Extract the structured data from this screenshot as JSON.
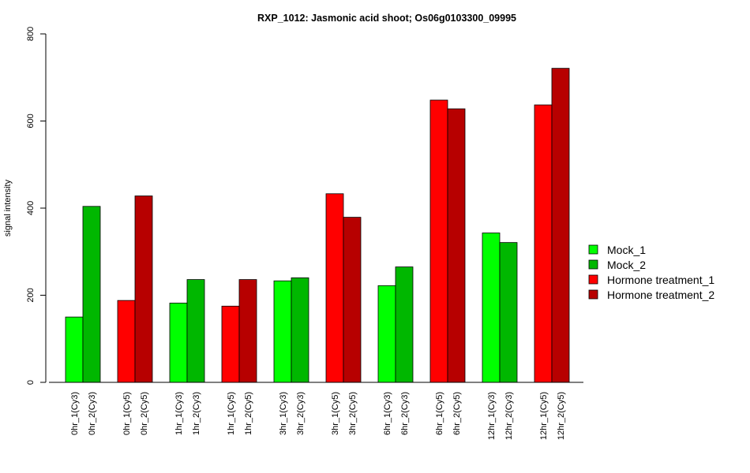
{
  "chart_data": {
    "type": "bar",
    "title": "RXP_1012: Jasmonic acid shoot; Os06g0103300_09995",
    "xlabel": "",
    "ylabel": "signal intensity",
    "ylim": [
      0,
      800
    ],
    "yticks": [
      0,
      200,
      400,
      600,
      800
    ],
    "grid": false,
    "legend_position": "right",
    "categories": [
      "0hr_1(Cy3)",
      "0hr_2(Cy3)",
      "0hr_1(Cy5)",
      "0hr_2(Cy5)",
      "1hr_1(Cy3)",
      "1hr_2(Cy3)",
      "1hr_1(Cy5)",
      "1hr_2(Cy5)",
      "3hr_1(Cy3)",
      "3hr_2(Cy3)",
      "3hr_1(Cy5)",
      "3hr_2(Cy5)",
      "6hr_1(Cy3)",
      "6hr_2(Cy3)",
      "6hr_1(Cy5)",
      "6hr_2(Cy5)",
      "12hr_1(Cy3)",
      "12hr_2(Cy3)",
      "12hr_1(Cy5)",
      "12hr_2(Cy5)"
    ],
    "values": [
      150,
      404,
      188,
      428,
      182,
      236,
      175,
      236,
      233,
      240,
      433,
      379,
      222,
      265,
      648,
      628,
      343,
      321,
      637,
      721
    ],
    "series_index": [
      0,
      1,
      2,
      3,
      0,
      1,
      2,
      3,
      0,
      1,
      2,
      3,
      0,
      1,
      2,
      3,
      0,
      1,
      2,
      3
    ],
    "series": [
      {
        "name": "Mock_1",
        "color": "#00ff00"
      },
      {
        "name": "Mock_2",
        "color": "#00b700"
      },
      {
        "name": "Hormone treatment_1",
        "color": "#ff0000"
      },
      {
        "name": "Hormone treatment_2",
        "color": "#b70000"
      }
    ]
  }
}
